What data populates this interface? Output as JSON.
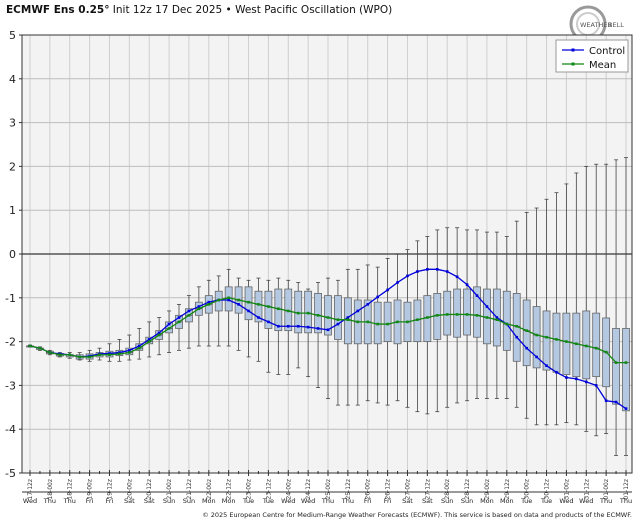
{
  "title": {
    "model": "ECMWF Ens 0.25°",
    "rest": "Init 12z 17 Dec 2025 • West Pacific Oscillation (WPO)"
  },
  "logo_text": "WeatherBELL",
  "footer": "© 2025 European Centre for Medium-Range Weather Forecasts (ECMWF). This service is based on data and products of the ECMWF.",
  "chart_data": {
    "type": "box+line",
    "ylim": [
      -5,
      5
    ],
    "yticks": [
      5,
      4,
      3,
      2,
      1,
      0,
      -1,
      -2,
      -3,
      -4,
      -5
    ],
    "grid": true,
    "legend_position": "top-right",
    "time_step_hours": 6,
    "xtick_labels": [
      "17-12z",
      "18-00z",
      "18-12z",
      "19-00z",
      "19-12z",
      "20-00z",
      "20-12z",
      "21-00z",
      "21-12z",
      "22-00z",
      "22-12z",
      "23-00z",
      "23-12z",
      "24-00z",
      "24-12z",
      "25-00z",
      "25-12z",
      "26-00z",
      "26-12z",
      "27-00z",
      "27-12z",
      "28-00z",
      "28-12z",
      "29-00z",
      "29-12z",
      "30-00z",
      "30-12z",
      "31-00z",
      "31-12z",
      "01-00z",
      "01-12z"
    ],
    "day_labels": [
      "Wed",
      "Thu",
      "Thu",
      "Fri",
      "Fri",
      "Sat",
      "Sat",
      "Sun",
      "Sun",
      "Mon",
      "Mon",
      "Tue",
      "Tue",
      "Wed",
      "Wed",
      "Thu",
      "Thu",
      "Fri",
      "Fri",
      "Sat",
      "Sat",
      "Sun",
      "Sun",
      "Mon",
      "Mon",
      "Tue",
      "Tue",
      "Wed",
      "Wed",
      "Thu",
      "Thu"
    ],
    "colors": {
      "control": "#0000dd",
      "mean": "#118811",
      "box_fill": "#b4c8e2",
      "box_stroke": "#666666",
      "whisker": "#444444"
    },
    "series": [
      {
        "name": "Control",
        "values": [
          -2.1,
          -2.15,
          -2.25,
          -2.28,
          -2.3,
          -2.35,
          -2.33,
          -2.28,
          -2.27,
          -2.25,
          -2.2,
          -2.1,
          -1.95,
          -1.8,
          -1.6,
          -1.45,
          -1.3,
          -1.2,
          -1.1,
          -1.05,
          -1.05,
          -1.15,
          -1.3,
          -1.45,
          -1.55,
          -1.65,
          -1.65,
          -1.65,
          -1.67,
          -1.7,
          -1.73,
          -1.6,
          -1.45,
          -1.3,
          -1.15,
          -0.98,
          -0.82,
          -0.65,
          -0.5,
          -0.4,
          -0.35,
          -0.35,
          -0.4,
          -0.52,
          -0.7,
          -0.95,
          -1.2,
          -1.45,
          -1.6,
          -1.9,
          -2.15,
          -2.35,
          -2.55,
          -2.7,
          -2.82,
          -2.85,
          -2.92,
          -3.0,
          -3.35,
          -3.38,
          -3.53
        ]
      },
      {
        "name": "Mean",
        "values": [
          -2.1,
          -2.15,
          -2.25,
          -2.3,
          -2.3,
          -2.35,
          -2.35,
          -2.3,
          -2.3,
          -2.28,
          -2.25,
          -2.15,
          -2.0,
          -1.85,
          -1.7,
          -1.55,
          -1.4,
          -1.25,
          -1.15,
          -1.05,
          -1.0,
          -1.05,
          -1.1,
          -1.15,
          -1.2,
          -1.25,
          -1.3,
          -1.35,
          -1.35,
          -1.4,
          -1.45,
          -1.5,
          -1.5,
          -1.55,
          -1.55,
          -1.6,
          -1.6,
          -1.55,
          -1.55,
          -1.5,
          -1.45,
          -1.4,
          -1.38,
          -1.38,
          -1.38,
          -1.4,
          -1.45,
          -1.5,
          -1.6,
          -1.65,
          -1.75,
          -1.85,
          -1.9,
          -1.95,
          -2.0,
          -2.05,
          -2.1,
          -2.15,
          -2.24,
          -2.48,
          -2.48
        ]
      }
    ],
    "boxes": {
      "max": [
        -2.08,
        -2.12,
        -2.2,
        -2.25,
        -2.25,
        -2.25,
        -2.2,
        -2.15,
        -2.05,
        -1.95,
        -1.85,
        -1.7,
        -1.55,
        -1.45,
        -1.3,
        -1.15,
        -0.95,
        -0.75,
        -0.6,
        -0.5,
        -0.35,
        -0.55,
        -0.6,
        -0.55,
        -0.6,
        -0.55,
        -0.6,
        -0.65,
        -0.8,
        -0.65,
        -0.55,
        -0.6,
        -0.35,
        -0.35,
        -0.25,
        -0.3,
        -0.1,
        0.0,
        0.1,
        0.3,
        0.4,
        0.55,
        0.6,
        0.6,
        0.55,
        0.55,
        0.5,
        0.5,
        0.4,
        0.75,
        0.95,
        1.05,
        1.25,
        1.4,
        1.6,
        1.85,
        2.0,
        2.05,
        2.05,
        2.15,
        2.2
      ],
      "q75": [
        -2.1,
        -2.15,
        -2.22,
        -2.27,
        -2.3,
        -2.3,
        -2.28,
        -2.25,
        -2.22,
        -2.2,
        -2.15,
        -2.05,
        -1.9,
        -1.75,
        -1.55,
        -1.4,
        -1.25,
        -1.1,
        -0.95,
        -0.85,
        -0.75,
        -0.75,
        -0.75,
        -0.85,
        -0.85,
        -0.8,
        -0.8,
        -0.85,
        -0.85,
        -0.9,
        -0.95,
        -0.95,
        -1.0,
        -1.05,
        -1.05,
        -1.1,
        -1.1,
        -1.05,
        -1.1,
        -1.05,
        -0.95,
        -0.9,
        -0.85,
        -0.8,
        -0.8,
        -0.75,
        -0.8,
        -0.8,
        -0.85,
        -0.9,
        -1.05,
        -1.2,
        -1.3,
        -1.35,
        -1.35,
        -1.35,
        -1.3,
        -1.35,
        -1.46,
        -1.7,
        -1.7
      ],
      "median": [
        -2.1,
        -2.15,
        -2.25,
        -2.3,
        -2.3,
        -2.35,
        -2.35,
        -2.3,
        -2.3,
        -2.28,
        -2.25,
        -2.15,
        -2.0,
        -1.85,
        -1.7,
        -1.55,
        -1.4,
        -1.25,
        -1.15,
        -1.05,
        -1.0,
        -1.05,
        -1.1,
        -1.15,
        -1.2,
        -1.25,
        -1.3,
        -1.35,
        -1.35,
        -1.4,
        -1.45,
        -1.5,
        -1.5,
        -1.55,
        -1.55,
        -1.6,
        -1.6,
        -1.55,
        -1.55,
        -1.5,
        -1.45,
        -1.4,
        -1.38,
        -1.38,
        -1.38,
        -1.4,
        -1.45,
        -1.5,
        -1.6,
        -1.65,
        -1.75,
        -1.85,
        -1.9,
        -1.95,
        -2.0,
        -2.05,
        -2.1,
        -2.15,
        -2.24,
        -2.48,
        -2.48
      ],
      "q25": [
        -2.1,
        -2.18,
        -2.28,
        -2.33,
        -2.35,
        -2.4,
        -2.4,
        -2.35,
        -2.35,
        -2.32,
        -2.3,
        -2.2,
        -2.05,
        -1.95,
        -1.8,
        -1.7,
        -1.55,
        -1.4,
        -1.35,
        -1.3,
        -1.3,
        -1.35,
        -1.5,
        -1.55,
        -1.7,
        -1.75,
        -1.75,
        -1.8,
        -1.8,
        -1.8,
        -1.85,
        -1.95,
        -2.05,
        -2.05,
        -2.05,
        -2.05,
        -2.0,
        -2.05,
        -2.0,
        -2.0,
        -2.0,
        -1.95,
        -1.85,
        -1.9,
        -1.85,
        -1.9,
        -2.05,
        -2.1,
        -2.2,
        -2.45,
        -2.55,
        -2.6,
        -2.65,
        -2.7,
        -2.75,
        -2.8,
        -2.85,
        -2.8,
        -3.03,
        -3.43,
        -3.58
      ],
      "min": [
        -2.12,
        -2.2,
        -2.3,
        -2.35,
        -2.38,
        -2.42,
        -2.45,
        -2.42,
        -2.45,
        -2.45,
        -2.42,
        -2.4,
        -2.35,
        -2.3,
        -2.25,
        -2.2,
        -2.15,
        -2.1,
        -2.1,
        -2.1,
        -2.1,
        -2.2,
        -2.35,
        -2.45,
        -2.7,
        -2.75,
        -2.75,
        -2.6,
        -2.8,
        -3.05,
        -3.3,
        -3.45,
        -3.45,
        -3.45,
        -3.35,
        -3.4,
        -3.45,
        -3.35,
        -3.5,
        -3.6,
        -3.65,
        -3.6,
        -3.5,
        -3.4,
        -3.35,
        -3.3,
        -3.3,
        -3.3,
        -3.3,
        -3.5,
        -3.75,
        -3.9,
        -3.9,
        -3.9,
        -3.85,
        -3.9,
        -4.05,
        -4.15,
        -4.1,
        -4.6,
        -4.6
      ]
    }
  }
}
